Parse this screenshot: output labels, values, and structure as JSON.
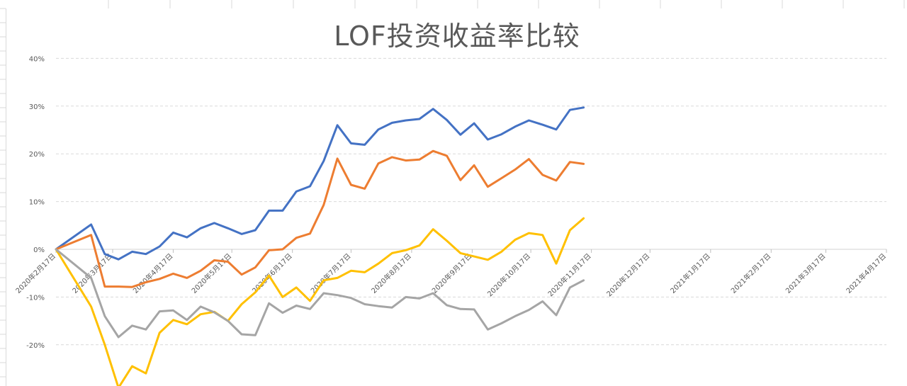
{
  "chart_data": {
    "type": "line",
    "title": "LOF投资收益率比较",
    "y_ticks": [
      "40%",
      "30%",
      "20%",
      "10%",
      "0%",
      "-10%",
      "-20%"
    ],
    "ylim": [
      -0.28,
      0.41
    ],
    "x_range": [
      "2020-02-17",
      "2021-04-17"
    ],
    "x_tick_labels": [
      "2020年2月17日",
      "2020年3月17日",
      "2020年4月17日",
      "2020年5月17日",
      "2020年6月17日",
      "2020年7月17日",
      "2020年8月17日",
      "2020年9月17日",
      "2020年10月17日",
      "2020年11月17日",
      "2020年12月17日",
      "2021年1月17日",
      "2021年2月17日",
      "2021年3月17日",
      "2021年4月17日"
    ],
    "grid": true,
    "legend": "none",
    "x": [
      "2020-02-17",
      "2020-03-06",
      "2020-03-13",
      "2020-03-20",
      "2020-03-27",
      "2020-04-03",
      "2020-04-10",
      "2020-04-17",
      "2020-04-24",
      "2020-05-01",
      "2020-05-08",
      "2020-05-15",
      "2020-05-22",
      "2020-05-29",
      "2020-06-05",
      "2020-06-12",
      "2020-06-19",
      "2020-06-26",
      "2020-07-03",
      "2020-07-10",
      "2020-07-17",
      "2020-07-24",
      "2020-07-31",
      "2020-08-07",
      "2020-08-14",
      "2020-08-21",
      "2020-08-28",
      "2020-09-04",
      "2020-09-11",
      "2020-09-18",
      "2020-09-25",
      "2020-10-02",
      "2020-10-09",
      "2020-10-16",
      "2020-10-23",
      "2020-10-30",
      "2020-11-06",
      "2020-11-13",
      "2020-11-20"
    ],
    "series": [
      {
        "color": "#4472c4",
        "values": [
          0.0,
          0.052,
          -0.01,
          -0.021,
          -0.005,
          -0.01,
          0.006,
          0.035,
          0.025,
          0.044,
          0.055,
          0.044,
          0.032,
          0.04,
          0.081,
          0.081,
          0.121,
          0.132,
          0.185,
          0.26,
          0.222,
          0.219,
          0.251,
          0.265,
          0.27,
          0.273,
          0.294,
          0.271,
          0.24,
          0.264,
          0.23,
          0.241,
          0.257,
          0.27,
          0.261,
          0.251,
          0.292,
          0.297,
          null
        ]
      },
      {
        "color": "#ed7d31",
        "values": [
          0.0,
          0.03,
          -0.078,
          -0.078,
          -0.079,
          -0.069,
          -0.062,
          -0.051,
          -0.06,
          -0.045,
          -0.023,
          -0.026,
          -0.053,
          -0.038,
          -0.002,
          0.0,
          0.024,
          0.033,
          0.093,
          0.19,
          0.135,
          0.127,
          0.18,
          0.193,
          0.186,
          0.188,
          0.206,
          0.196,
          0.145,
          0.176,
          0.131,
          0.149,
          0.167,
          0.189,
          0.156,
          0.144,
          0.183,
          0.179,
          null
        ]
      },
      {
        "color": "#ffc000",
        "values": [
          0.0,
          -0.12,
          -0.2,
          -0.29,
          -0.245,
          -0.26,
          -0.175,
          -0.148,
          -0.157,
          -0.136,
          -0.131,
          -0.15,
          -0.115,
          -0.09,
          -0.055,
          -0.1,
          -0.08,
          -0.108,
          -0.065,
          -0.06,
          -0.045,
          -0.048,
          -0.03,
          -0.008,
          -0.002,
          0.008,
          0.042,
          0.018,
          -0.008,
          -0.015,
          -0.022,
          -0.005,
          0.02,
          0.034,
          0.03,
          -0.03,
          0.04,
          0.065,
          null
        ]
      },
      {
        "color": "#a5a5a5",
        "values": [
          0.0,
          -0.06,
          -0.14,
          -0.184,
          -0.16,
          -0.168,
          -0.13,
          -0.128,
          -0.148,
          -0.12,
          -0.132,
          -0.15,
          -0.178,
          -0.18,
          -0.113,
          -0.133,
          -0.118,
          -0.125,
          -0.092,
          -0.096,
          -0.102,
          -0.115,
          -0.119,
          -0.122,
          -0.1,
          -0.103,
          -0.092,
          -0.117,
          -0.125,
          -0.126,
          -0.168,
          -0.155,
          -0.14,
          -0.127,
          -0.109,
          -0.138,
          -0.08,
          -0.065,
          null
        ]
      }
    ]
  }
}
